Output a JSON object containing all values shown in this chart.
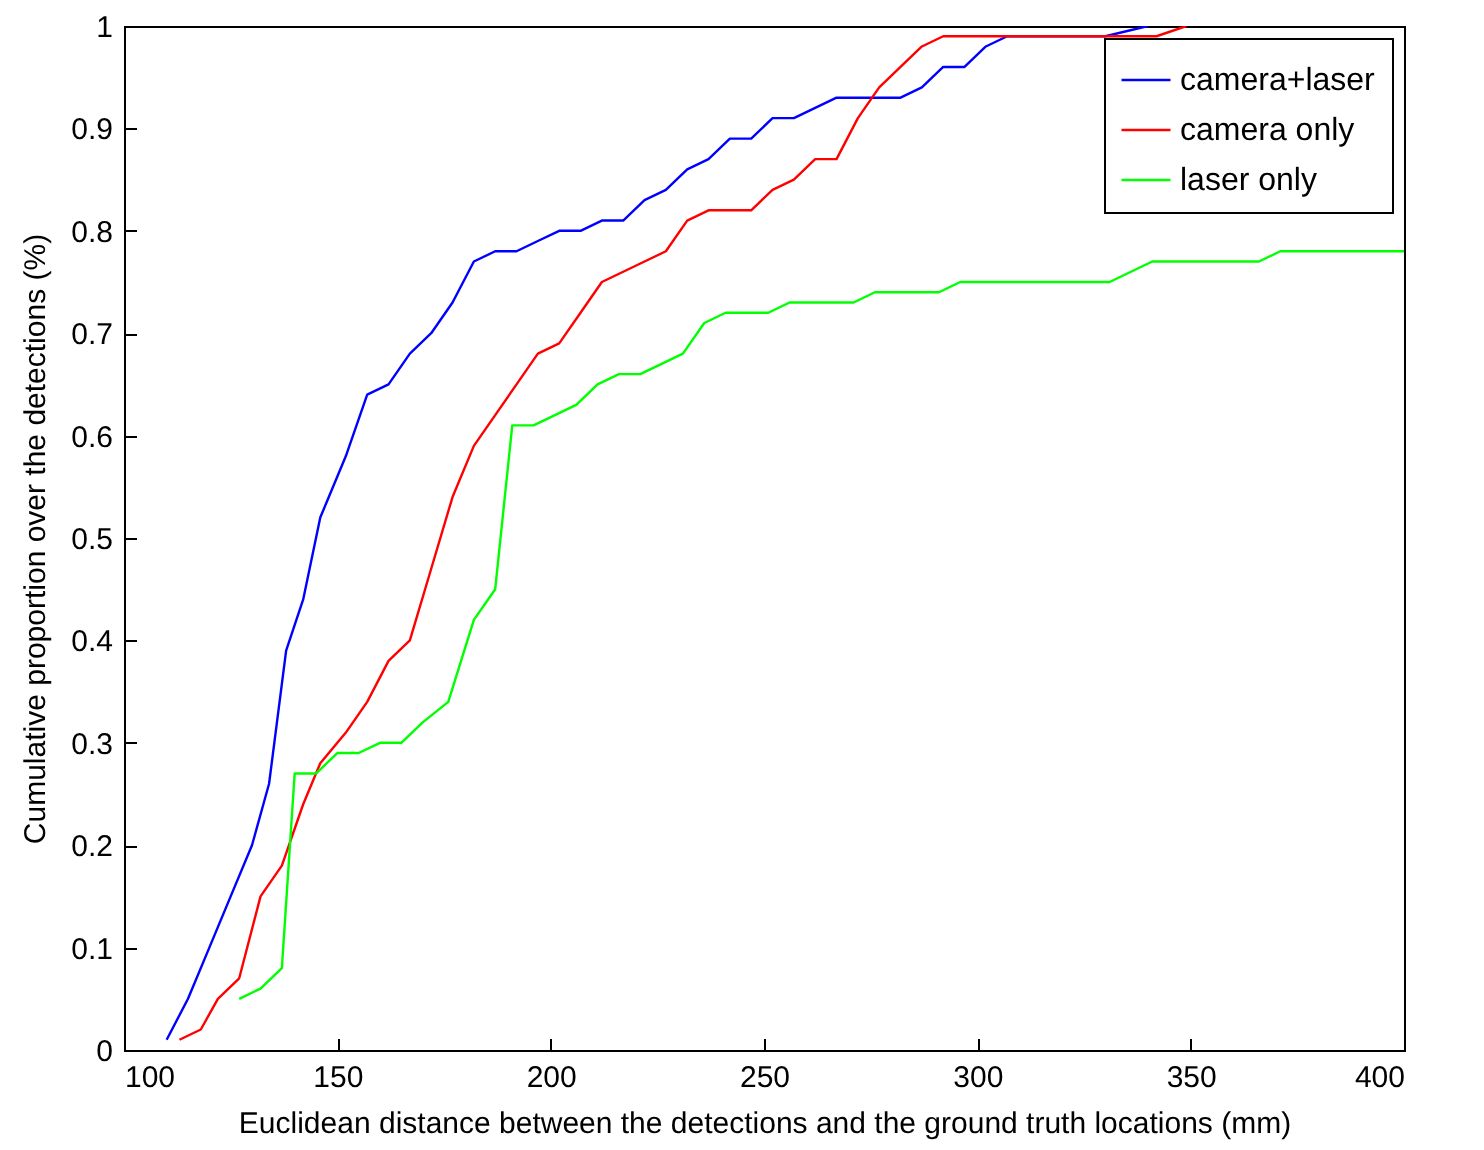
{
  "chart_data": {
    "type": "line",
    "xlabel": "Euclidean distance between the detections and the ground truth locations (mm)",
    "ylabel": "Cumulative proportion over the detections (%)",
    "xlim": [
      100,
      400
    ],
    "xticks": [
      100,
      150,
      200,
      250,
      300,
      350,
      400
    ],
    "ylim": [
      0,
      1
    ],
    "yticks": [
      0,
      0.1,
      0.2,
      0.3,
      0.4,
      0.5,
      0.6,
      0.7,
      0.8,
      0.9,
      1
    ],
    "grid": false,
    "legend": "top right",
    "line_style": "solid",
    "marker": "none",
    "series": [
      {
        "name": "camera+laser",
        "color": "#0000ff",
        "x": [
          110,
          115,
          120,
          125,
          130,
          134,
          138,
          142,
          146,
          152,
          157,
          162,
          167,
          172,
          177,
          182,
          187,
          192,
          197,
          202,
          207,
          212,
          217,
          222,
          227,
          232,
          237,
          242,
          247,
          252,
          257,
          262,
          267,
          272,
          277,
          282,
          287,
          292,
          297,
          302,
          307,
          312,
          330,
          340
        ],
        "values": [
          0.01,
          0.05,
          0.1,
          0.15,
          0.2,
          0.26,
          0.39,
          0.44,
          0.52,
          0.58,
          0.64,
          0.65,
          0.68,
          0.7,
          0.73,
          0.77,
          0.78,
          0.78,
          0.79,
          0.8,
          0.8,
          0.81,
          0.81,
          0.83,
          0.84,
          0.86,
          0.87,
          0.89,
          0.89,
          0.91,
          0.91,
          0.92,
          0.93,
          0.93,
          0.93,
          0.93,
          0.94,
          0.96,
          0.96,
          0.98,
          0.99,
          0.99,
          0.99,
          1.0
        ]
      },
      {
        "name": "camera only",
        "color": "#ff0000",
        "x": [
          113,
          118,
          122,
          127,
          132,
          137,
          142,
          146,
          152,
          157,
          162,
          167,
          172,
          177,
          182,
          187,
          192,
          197,
          202,
          207,
          212,
          217,
          222,
          227,
          232,
          237,
          242,
          247,
          252,
          257,
          262,
          267,
          272,
          277,
          282,
          287,
          292,
          297,
          342,
          349
        ],
        "values": [
          0.01,
          0.02,
          0.05,
          0.07,
          0.15,
          0.18,
          0.24,
          0.28,
          0.31,
          0.34,
          0.38,
          0.4,
          0.47,
          0.54,
          0.59,
          0.62,
          0.65,
          0.68,
          0.69,
          0.72,
          0.75,
          0.76,
          0.77,
          0.78,
          0.81,
          0.82,
          0.82,
          0.82,
          0.84,
          0.85,
          0.87,
          0.87,
          0.91,
          0.94,
          0.96,
          0.98,
          0.99,
          0.99,
          0.99,
          1.0
        ]
      },
      {
        "name": "laser only",
        "color": "#00ff00",
        "x": [
          127,
          132,
          137,
          140,
          145,
          150,
          155,
          160,
          165,
          170,
          176,
          182,
          187,
          191,
          196,
          201,
          206,
          211,
          216,
          221,
          226,
          231,
          236,
          241,
          251,
          256,
          271,
          276,
          291,
          296,
          331,
          341,
          366,
          371,
          400
        ],
        "values": [
          0.05,
          0.06,
          0.08,
          0.27,
          0.27,
          0.29,
          0.29,
          0.3,
          0.3,
          0.32,
          0.34,
          0.42,
          0.45,
          0.61,
          0.61,
          0.62,
          0.63,
          0.65,
          0.66,
          0.66,
          0.67,
          0.68,
          0.71,
          0.72,
          0.72,
          0.73,
          0.73,
          0.74,
          0.74,
          0.75,
          0.75,
          0.77,
          0.77,
          0.78,
          0.78
        ]
      }
    ]
  }
}
